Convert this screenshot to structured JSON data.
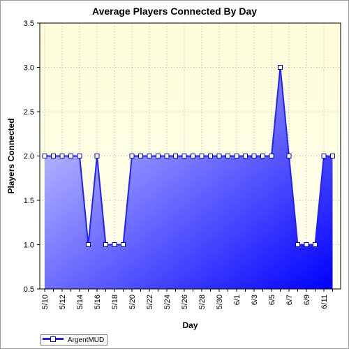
{
  "chart_data": {
    "type": "area",
    "title": "Average Players Connected By Day",
    "xlabel": "Day",
    "ylabel": "Players Connected",
    "ylim": [
      0.5,
      3.5
    ],
    "yticks": [
      "0.5",
      "1.0",
      "1.5",
      "2.0",
      "2.5",
      "3.0",
      "3.5"
    ],
    "grid": true,
    "legend_position": "bottom-left",
    "x": [
      "5/10",
      "5/11",
      "5/12",
      "5/13",
      "5/14",
      "5/15",
      "5/16",
      "5/17",
      "5/18",
      "5/19",
      "5/20",
      "5/21",
      "5/22",
      "5/23",
      "5/24",
      "5/25",
      "5/26",
      "5/27",
      "5/28",
      "5/29",
      "5/30",
      "5/31",
      "6/1",
      "6/2",
      "6/3",
      "6/4",
      "6/5",
      "6/6",
      "6/7",
      "6/8",
      "6/9",
      "6/10",
      "6/11",
      "6/12"
    ],
    "x_tick_labels": [
      "5/10",
      "5/12",
      "5/14",
      "5/16",
      "5/18",
      "5/20",
      "5/22",
      "5/24",
      "5/26",
      "5/28",
      "5/30",
      "6/1",
      "6/3",
      "6/5",
      "6/7",
      "6/9",
      "6/11"
    ],
    "series": [
      {
        "name": "ArgentMUD",
        "values": [
          2,
          2,
          2,
          2,
          2,
          1,
          2,
          1,
          1,
          1,
          2,
          2,
          2,
          2,
          2,
          2,
          2,
          2,
          2,
          2,
          2,
          2,
          2,
          2,
          2,
          2,
          2,
          3,
          2,
          1,
          1,
          1,
          2,
          2
        ]
      }
    ]
  },
  "colors": {
    "plot_bg_top": "#fdfdd8",
    "plot_bg_bottom": "#fffff0",
    "fill_light": "#dcdcff",
    "fill_dark": "#0000ff",
    "line": "#2020ff",
    "marker_stroke": "#0000cc"
  }
}
